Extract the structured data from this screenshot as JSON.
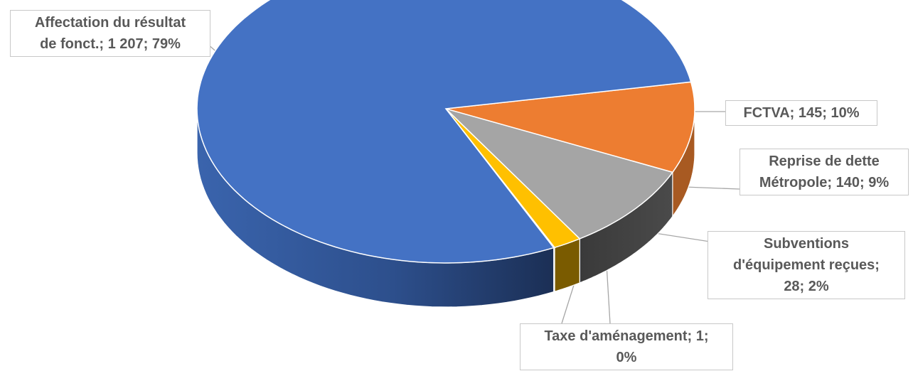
{
  "chart_data": {
    "type": "pie",
    "style": "3d",
    "slices": [
      {
        "id": "affectation",
        "label_lines": [
          "Affectation du résultat",
          "de fonct.; 1 207; 79%"
        ],
        "value": 1207,
        "percent": 79,
        "color": "#4472c4"
      },
      {
        "id": "fctva",
        "label_lines": [
          "FCTVA; 145; 10%"
        ],
        "value": 145,
        "percent": 10,
        "color": "#ed7d31"
      },
      {
        "id": "reprise",
        "label_lines": [
          "Reprise de dette",
          "Métropole; 140; 9%"
        ],
        "value": 140,
        "percent": 9,
        "color": "#a5a5a5"
      },
      {
        "id": "subventions",
        "label_lines": [
          "Subventions",
          "d'équipement reçues;",
          "28; 2%"
        ],
        "value": 28,
        "percent": 2,
        "color": "#ffc000"
      },
      {
        "id": "taxe",
        "label_lines": [
          "Taxe d'aménagement; 1;",
          "0%"
        ],
        "value": 1,
        "percent": 0,
        "color": "#5b9bd5"
      }
    ],
    "legend": "none",
    "data_labels": "category; value; percent"
  }
}
